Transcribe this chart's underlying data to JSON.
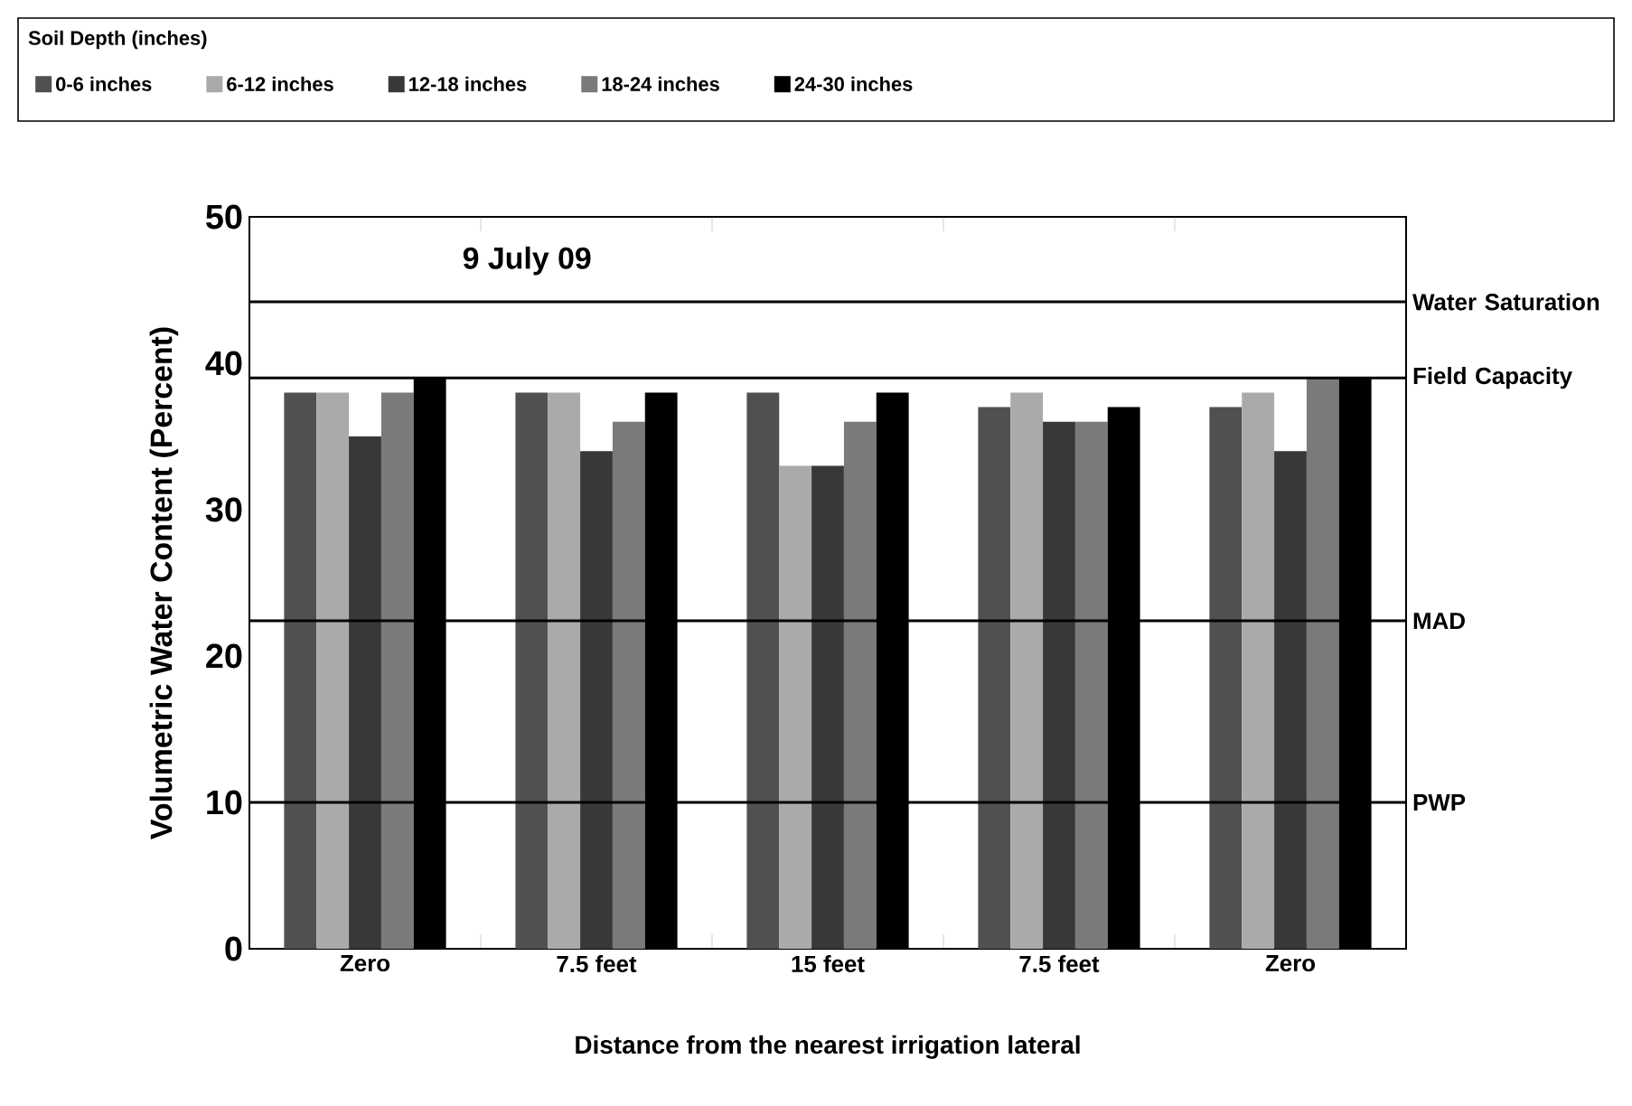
{
  "chart_data": {
    "type": "bar",
    "xlabel": "Distance from the nearest irrigation lateral",
    "ylabel": "Volumetric Water Content (Percent)",
    "legend_title": "Soil Depth (inches)",
    "annotations": [
      "9 July 09"
    ],
    "categories": [
      "Zero",
      "7.5 feet",
      "15 feet",
      "7.5 feet",
      "Zero"
    ],
    "series": [
      {
        "name": "0-6 inches",
        "color": "#505050",
        "values": [
          38,
          38,
          38,
          37,
          37
        ]
      },
      {
        "name": "6-12 inches",
        "color": "#aaaaaa",
        "values": [
          38,
          38,
          33,
          38,
          38
        ]
      },
      {
        "name": "12-18 inches",
        "color": "#383838",
        "values": [
          35,
          34,
          33,
          36,
          34
        ]
      },
      {
        "name": "18-24 inches",
        "color": "#7a7a7a",
        "values": [
          38,
          36,
          36,
          36,
          39
        ]
      },
      {
        "name": "24-30 inches",
        "color": "#000000",
        "values": [
          39,
          38,
          38,
          37,
          39
        ]
      }
    ],
    "ylim": [
      0,
      50
    ],
    "yticks": [
      0,
      10,
      20,
      30,
      40,
      50
    ],
    "ref_lines": [
      {
        "axis": "y",
        "value": 44.2,
        "label": "Water Saturation"
      },
      {
        "axis": "y",
        "value": 39,
        "label": "Field Capacity"
      },
      {
        "axis": "y",
        "value": 22.4,
        "label": "MAD"
      },
      {
        "axis": "y",
        "value": 10,
        "label": "PWP"
      }
    ],
    "legend": "top",
    "grid": false
  }
}
